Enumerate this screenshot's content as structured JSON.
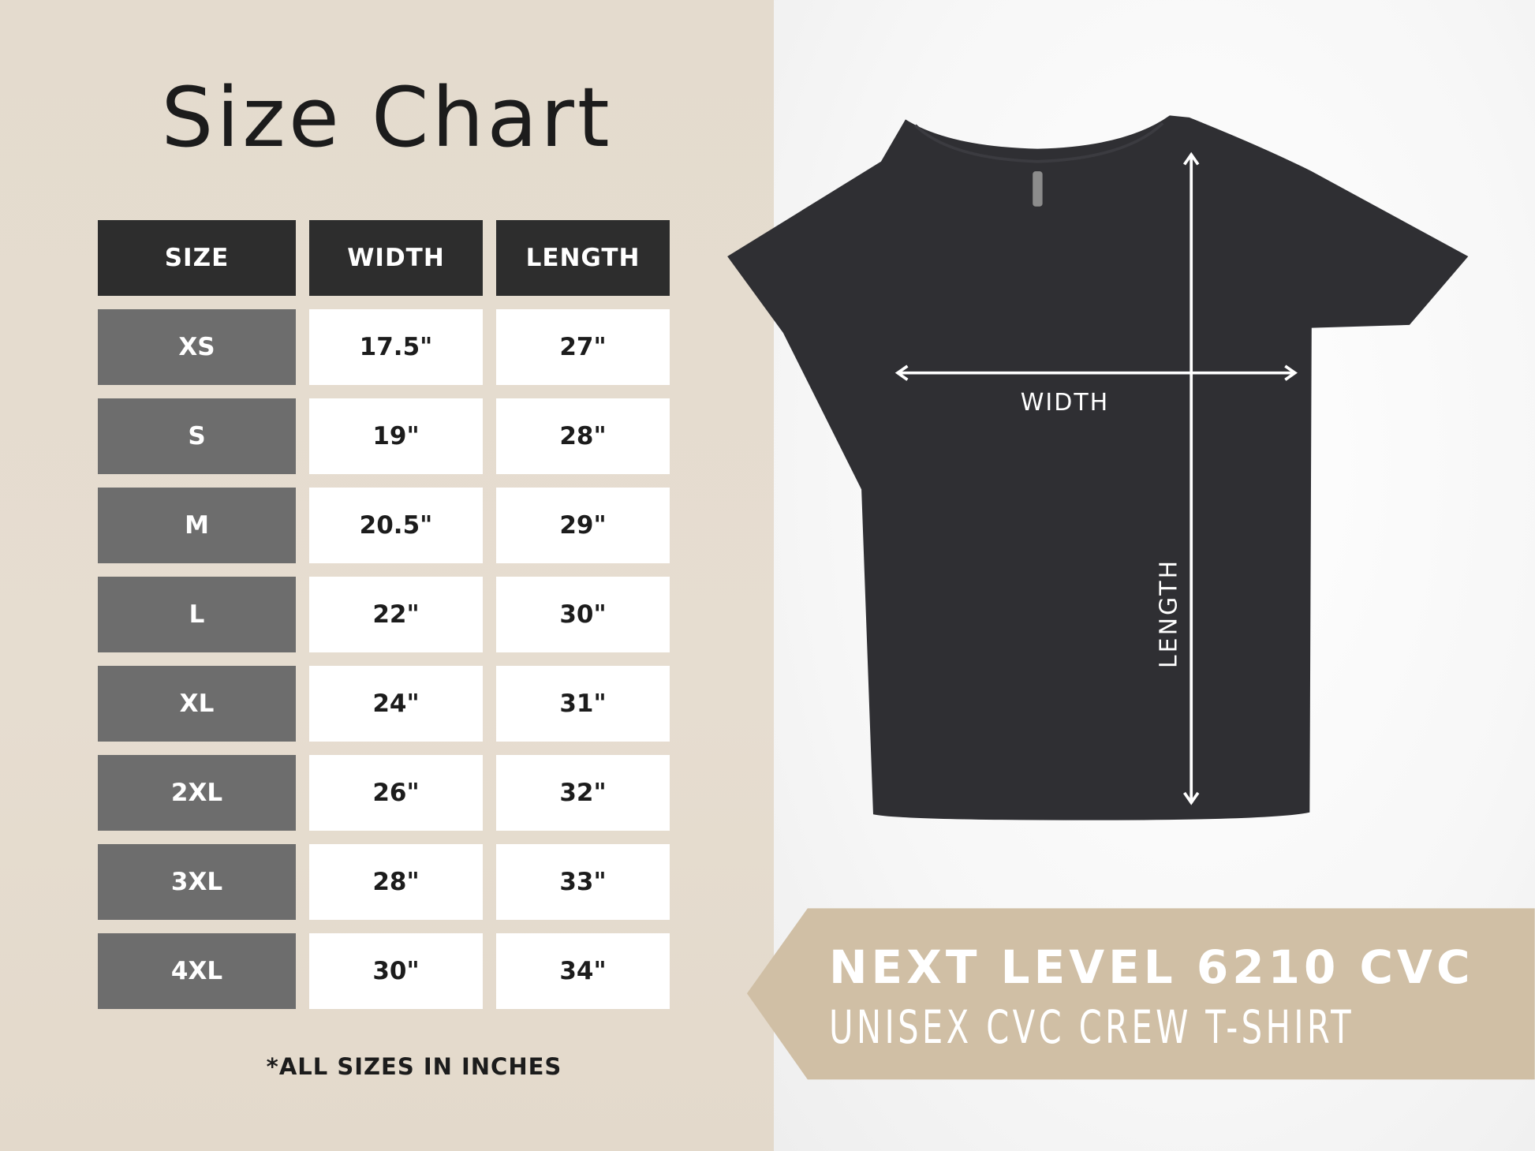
{
  "title": "Size Chart",
  "table": {
    "headers": [
      "SIZE",
      "WIDTH",
      "LENGTH"
    ],
    "rows": [
      [
        "XS",
        "17.5\"",
        "27\""
      ],
      [
        "S",
        "19\"",
        "28\""
      ],
      [
        "M",
        "20.5\"",
        "29\""
      ],
      [
        "L",
        "22\"",
        "30\""
      ],
      [
        "XL",
        "24\"",
        "31\""
      ],
      [
        "2XL",
        "26\"",
        "32\""
      ],
      [
        "3XL",
        "28\"",
        "33\""
      ],
      [
        "4XL",
        "30\"",
        "34\""
      ]
    ]
  },
  "footnote": "*ALL SIZES IN INCHES",
  "diagram": {
    "width_label": "WIDTH",
    "length_label": "LENGTH"
  },
  "banner": {
    "product": "NEXT LEVEL 6210 CVC",
    "subtitle": "UNISEX CVC CREW T-SHIRT"
  },
  "colors": {
    "panel": "#e4dbce",
    "header": "#2d2d2d",
    "size_cell": "#6d6d6d",
    "banner": "#d0bfa5",
    "shirt": "#2f2f33"
  }
}
